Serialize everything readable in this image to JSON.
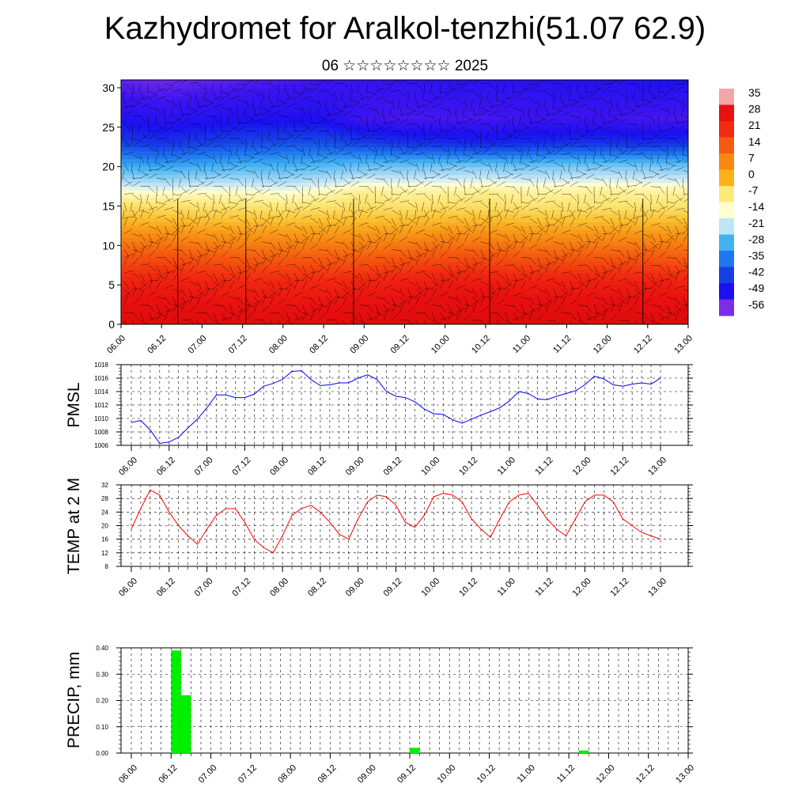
{
  "header": {
    "title": "Kazhydromet for Aralkol-tenzhi(51.07 62.9)",
    "subtitle": "06 ☆☆☆☆☆☆☆☆ 2025"
  },
  "colors": {
    "pmsl_line": "#0000ff",
    "temp_line": "#ff0000",
    "precip_bar": "#00ee00",
    "gridline": "#000000"
  },
  "chart_data": [
    {
      "type": "heatmap",
      "title": "",
      "ylabel": "",
      "xlabel": "",
      "x_ticks": [
        "06.00",
        "06.12",
        "07.00",
        "07.12",
        "08.00",
        "08.12",
        "09.00",
        "09.12",
        "10.00",
        "10.12",
        "11.00",
        "11.12",
        "12.00",
        "12.12",
        "13.00"
      ],
      "y_ticks": [
        0,
        5,
        10,
        15,
        20,
        25,
        30
      ],
      "ylim": [
        0,
        31
      ],
      "overlay": "wind barbs",
      "colorbar": {
        "labels": [
          "35",
          "28",
          "21",
          "14",
          "7",
          "0",
          "-7",
          "-14",
          "-21",
          "-28",
          "-35",
          "-42",
          "-49",
          "-56"
        ],
        "colors": [
          "#f2a6a6",
          "#e81010",
          "#f22a10",
          "#f55a0f",
          "#f8880f",
          "#fbb11a",
          "#fde87a",
          "#ffffd0",
          "#bfe6f7",
          "#42b2f3",
          "#1e77f0",
          "#1640e6",
          "#1a10f2",
          "#7a2ee8"
        ]
      },
      "layers": [
        {
          "h": 0,
          "t": [
            33,
            33,
            33,
            32,
            32,
            32,
            33,
            33,
            34,
            34,
            33,
            33,
            33,
            33,
            33
          ]
        },
        {
          "h": 5,
          "t": [
            24,
            25,
            24,
            23,
            23,
            23,
            24,
            25,
            26,
            26,
            25,
            25,
            25,
            25,
            24
          ]
        },
        {
          "h": 8,
          "t": [
            16,
            17,
            16,
            15,
            15,
            15,
            15,
            16,
            17,
            17,
            16,
            16,
            16,
            16,
            15
          ]
        },
        {
          "h": 12,
          "t": [
            6,
            6,
            5,
            5,
            5,
            5,
            5,
            5,
            6,
            6,
            5,
            5,
            5,
            5,
            5
          ]
        },
        {
          "h": 15,
          "t": [
            -5,
            -5,
            -6,
            -6,
            -7,
            -6,
            -5,
            -6,
            -5,
            -5,
            -6,
            -6,
            -6,
            -6,
            -6
          ]
        },
        {
          "h": 17,
          "t": [
            -13,
            -14,
            -13,
            -13,
            -14,
            -12,
            -9,
            -10,
            -10,
            -9,
            -10,
            -10,
            -9,
            -10,
            -10
          ]
        },
        {
          "h": 20,
          "t": [
            -28,
            -29,
            -28,
            -27,
            -27,
            -26,
            -24,
            -24,
            -23,
            -23,
            -24,
            -23,
            -23,
            -23,
            -24
          ]
        },
        {
          "h": 23,
          "t": [
            -42,
            -44,
            -42,
            -41,
            -40,
            -40,
            -42,
            -44,
            -45,
            -46,
            -45,
            -44,
            -44,
            -45,
            -44
          ]
        },
        {
          "h": 26,
          "t": [
            -50,
            -52,
            -51,
            -50,
            -50,
            -50,
            -55,
            -56,
            -56,
            -56,
            -55,
            -55,
            -55,
            -56,
            -56
          ]
        },
        {
          "h": 31,
          "t": [
            -58,
            -59,
            -58,
            -57,
            -56,
            -55,
            -54,
            -53,
            -52,
            -52,
            -52,
            -51,
            -51,
            -50,
            -50
          ]
        }
      ]
    },
    {
      "type": "line",
      "ylabel": "PMSL",
      "x_ticks": [
        "06.00",
        "06.12",
        "07.00",
        "07.12",
        "08.00",
        "08.12",
        "09.00",
        "09.12",
        "10.00",
        "10.12",
        "11.00",
        "11.12",
        "12.00",
        "12.12",
        "13.00"
      ],
      "y_ticks": [
        "1006",
        "1008",
        "1010",
        "1012",
        "1014",
        "1016",
        "1018"
      ],
      "ylim": [
        1006,
        1018
      ],
      "series": [
        {
          "x": [
            0,
            3,
            6,
            9,
            12,
            15,
            18,
            21,
            24,
            27,
            30,
            33,
            36,
            39,
            42,
            45,
            48,
            51,
            54,
            57,
            60,
            63,
            66,
            69,
            72,
            75,
            78,
            81,
            84,
            87,
            90,
            93,
            96,
            99,
            102,
            105,
            108,
            111,
            114,
            117,
            120,
            123,
            126,
            129,
            132,
            135,
            138,
            141,
            144,
            147,
            150,
            153,
            156,
            159,
            162,
            165,
            168
          ],
          "y": [
            1009.4,
            1009.7,
            1008.3,
            1006.3,
            1006.5,
            1007.2,
            1008.6,
            1009.9,
            1011.6,
            1013.5,
            1013.5,
            1013.1,
            1013.1,
            1013.6,
            1014.8,
            1015.2,
            1015.8,
            1017.0,
            1017.1,
            1015.8,
            1014.9,
            1015.0,
            1015.3,
            1015.3,
            1016.0,
            1016.5,
            1015.8,
            1014.0,
            1013.3,
            1013.1,
            1012.5,
            1011.4,
            1010.7,
            1010.6,
            1009.8,
            1009.3,
            1009.9,
            1010.5,
            1011.0,
            1011.6,
            1012.6,
            1014.0,
            1013.7,
            1012.9,
            1012.8,
            1013.3,
            1013.7,
            1014.1,
            1015.0,
            1016.3,
            1015.9,
            1015.0,
            1014.8,
            1015.1,
            1015.3,
            1015.1,
            1016.0
          ]
        }
      ]
    },
    {
      "type": "line",
      "ylabel": "TEMP at 2 M",
      "x_ticks": [
        "06.00",
        "06.12",
        "07.00",
        "07.12",
        "08.00",
        "08.12",
        "09.00",
        "09.12",
        "10.00",
        "10.12",
        "11.00",
        "11.12",
        "12.00",
        "12.12",
        "13.00"
      ],
      "y_ticks": [
        "8",
        "12",
        "16",
        "20",
        "24",
        "28",
        "32"
      ],
      "ylim": [
        8,
        32
      ],
      "series": [
        {
          "x": [
            0,
            3,
            6,
            9,
            12,
            15,
            18,
            21,
            24,
            27,
            30,
            33,
            36,
            39,
            42,
            45,
            48,
            51,
            54,
            57,
            60,
            63,
            66,
            69,
            72,
            75,
            78,
            81,
            84,
            87,
            90,
            93,
            96,
            99,
            102,
            105,
            108,
            111,
            114,
            117,
            120,
            123,
            126,
            129,
            132,
            135,
            138,
            141,
            144,
            147,
            150,
            153,
            156,
            159,
            162,
            165,
            168
          ],
          "y": [
            19,
            25,
            30.5,
            29,
            24,
            20,
            17,
            14.5,
            19,
            23,
            25,
            25,
            21,
            16,
            13.5,
            12,
            17,
            23,
            25,
            26,
            24,
            21,
            17.5,
            16,
            22,
            27,
            29,
            28.5,
            26,
            21,
            19.5,
            23,
            28.5,
            29.5,
            29,
            27,
            22,
            19,
            16.5,
            22,
            27,
            29,
            29.5,
            26,
            22,
            19,
            17,
            22,
            27,
            29,
            29,
            27,
            22,
            20,
            18,
            17,
            16
          ]
        }
      ]
    },
    {
      "type": "bar",
      "ylabel": "PRECIP, mm",
      "x_ticks": [
        "06.00",
        "06.12",
        "07.00",
        "07.12",
        "08.00",
        "08.12",
        "09.00",
        "09.12",
        "10.00",
        "10.12",
        "11.00",
        "11.12",
        "12.00",
        "12.12",
        "13.00"
      ],
      "y_ticks": [
        "0.00",
        "0.10",
        "0.20",
        "0.30",
        "0.40"
      ],
      "ylim": [
        0,
        0.4
      ],
      "bars": [
        {
          "x": 12,
          "value": 0.39
        },
        {
          "x": 15,
          "value": 0.22
        },
        {
          "x": 84,
          "value": 0.02
        },
        {
          "x": 135,
          "value": 0.01
        }
      ]
    }
  ]
}
